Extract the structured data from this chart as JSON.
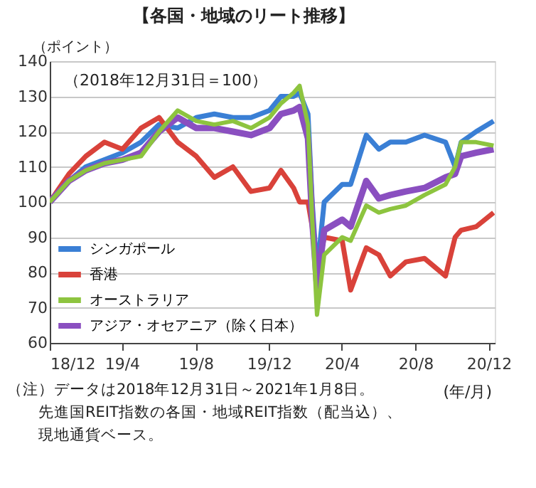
{
  "chart_data": {
    "type": "line",
    "title": "【各国・地域のリート推移】",
    "ylabel": "（ポイント）",
    "xlabel": "(年/月)",
    "annotations": [
      "（2018年12月31日＝100）",
      "（注）データは2018年12月31日～2021年1月8日。",
      "先進国REIT指数の各国・地域REIT指数（配当込）、",
      "現地通貨ベース。"
    ],
    "x": [
      "2018-12-31",
      "2019-02-01",
      "2019-03-01",
      "2019-04-01",
      "2019-05-01",
      "2019-06-01",
      "2019-07-01",
      "2019-08-01",
      "2019-09-01",
      "2019-10-01",
      "2019-11-01",
      "2019-12-01",
      "2020-01-01",
      "2020-01-20",
      "2020-02-10",
      "2020-02-20",
      "2020-03-05",
      "2020-03-12",
      "2020-03-20",
      "2020-04-01",
      "2020-05-01",
      "2020-05-15",
      "2020-06-10",
      "2020-07-01",
      "2020-07-20",
      "2020-08-15",
      "2020-09-15",
      "2020-10-20",
      "2020-11-05",
      "2020-11-15",
      "2020-12-10",
      "2021-01-08"
    ],
    "series": [
      {
        "name": "シンガポール",
        "color": "#3a7fd5",
        "values": [
          100,
          106,
          110,
          112,
          114,
          117,
          122,
          121,
          124,
          125,
          124,
          124,
          126,
          130,
          130,
          131,
          125,
          100,
          80,
          100,
          105,
          105,
          119,
          115,
          117,
          117,
          119,
          117,
          110,
          117,
          120,
          123
        ]
      },
      {
        "name": "香港",
        "color": "#d9423a",
        "values": [
          100,
          108,
          113,
          117,
          115,
          121,
          124,
          117,
          113,
          107,
          110,
          103,
          104,
          109,
          104,
          100,
          100,
          93,
          80,
          90,
          89,
          75,
          87,
          85,
          79,
          83,
          84,
          79,
          90,
          92,
          93,
          97
        ]
      },
      {
        "name": "オーストラリア",
        "color": "#8dc43f",
        "values": [
          100,
          106,
          109,
          111,
          112,
          113,
          120,
          126,
          123,
          122,
          123,
          121,
          124,
          128,
          131,
          133,
          122,
          95,
          68,
          85,
          90,
          89,
          99,
          97,
          98,
          99,
          102,
          105,
          110,
          117,
          117,
          116
        ]
      },
      {
        "name": "アジア・オセアニア（除く日本）",
        "color": "#8a4fc0",
        "values": [
          100,
          106,
          109,
          111,
          112,
          114,
          120,
          124,
          121,
          121,
          120,
          119,
          121,
          125,
          126,
          127,
          118,
          95,
          76,
          92,
          95,
          93,
          106,
          101,
          102,
          103,
          104,
          107,
          108,
          113,
          114,
          115
        ]
      }
    ],
    "xlim": [
      "2018-12-31",
      "2021-01-10"
    ],
    "xticks": [
      {
        "value": "2018-12-31",
        "label": "18/12"
      },
      {
        "value": "2019-04-30",
        "label": "19/4"
      },
      {
        "value": "2019-08-31",
        "label": "19/8"
      },
      {
        "value": "2019-12-31",
        "label": "19/12"
      },
      {
        "value": "2020-04-30",
        "label": "20/4"
      },
      {
        "value": "2020-08-31",
        "label": "20/8"
      },
      {
        "value": "2020-12-31",
        "label": "20/12"
      }
    ],
    "ylim": [
      60,
      140
    ],
    "yticks": [
      60,
      70,
      80,
      90,
      100,
      110,
      120,
      130,
      140
    ],
    "grid": "y",
    "legend": "bottom left",
    "line_style": "solid",
    "marker": "none"
  }
}
